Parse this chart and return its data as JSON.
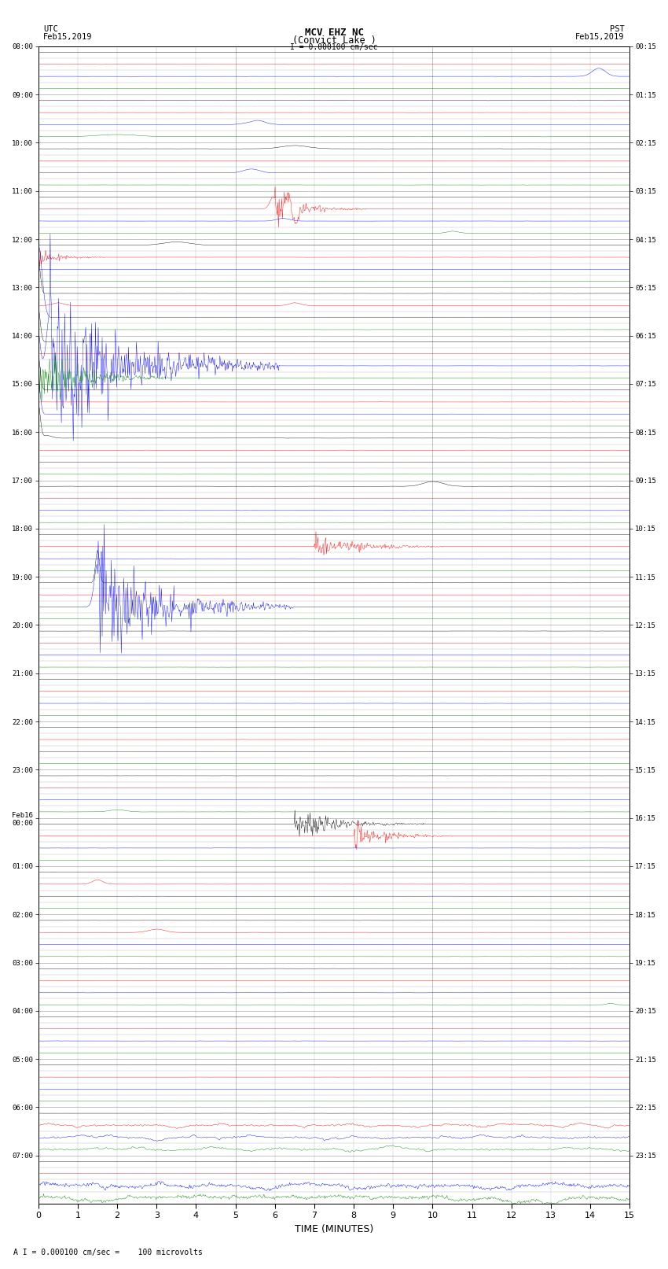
{
  "title_line1": "MCV EHZ NC",
  "title_line2": "(Convict Lake )",
  "scale_text": "I = 0.000100 cm/sec",
  "left_label_line1": "UTC",
  "left_label_line2": "Feb15,2019",
  "right_label_line1": "PST",
  "right_label_line2": "Feb15,2019",
  "xlabel": "TIME (MINUTES)",
  "footer_text": "A I = 0.000100 cm/sec =    100 microvolts",
  "utc_times": [
    "08:00",
    "09:00",
    "10:00",
    "11:00",
    "12:00",
    "13:00",
    "14:00",
    "15:00",
    "16:00",
    "17:00",
    "18:00",
    "19:00",
    "20:00",
    "21:00",
    "22:00",
    "23:00",
    "Feb16\n00:00",
    "01:00",
    "02:00",
    "03:00",
    "04:00",
    "05:00",
    "06:00",
    "07:00"
  ],
  "pst_times": [
    "00:15",
    "01:15",
    "02:15",
    "03:15",
    "04:15",
    "05:15",
    "06:15",
    "07:15",
    "08:15",
    "09:15",
    "10:15",
    "11:15",
    "12:15",
    "13:15",
    "14:15",
    "15:15",
    "16:15",
    "17:15",
    "18:15",
    "19:15",
    "20:15",
    "21:15",
    "22:15",
    "23:15"
  ],
  "n_hours": 24,
  "rows_per_hour": 4,
  "minutes_per_row": 15,
  "bg_color": "#ffffff",
  "grid_color": "#aaaaaa",
  "colors_cycle": [
    "#000000",
    "#ff0000",
    "#0000ff",
    "#008800"
  ],
  "noise_amp": 0.04,
  "seed": 42
}
